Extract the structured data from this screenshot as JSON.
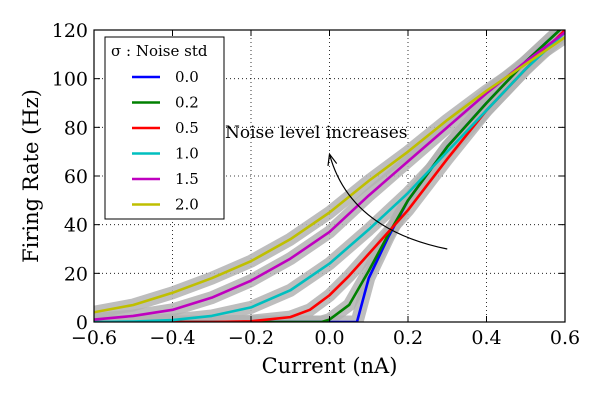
{
  "chart_data": {
    "type": "line",
    "title": "",
    "xlabel": "Current (nA)",
    "ylabel": "Firing Rate (Hz)",
    "xlim": [
      -0.6,
      0.6
    ],
    "ylim": [
      0,
      120
    ],
    "xticks": [
      -0.6,
      -0.4,
      -0.2,
      0.0,
      0.2,
      0.4,
      0.6
    ],
    "yticks": [
      0,
      20,
      40,
      60,
      80,
      100,
      120
    ],
    "xtick_labels": [
      "−0.6",
      "−0.4",
      "−0.2",
      "0.0",
      "0.2",
      "0.4",
      "0.6"
    ],
    "ytick_labels": [
      "0",
      "20",
      "40",
      "60",
      "80",
      "100",
      "120"
    ],
    "grid": true,
    "grid_style": "dotted",
    "legend_position": "top-left",
    "legend_title": "σ : Noise std",
    "shaded_band": "std across trials (gray)",
    "series": [
      {
        "name": "0.0",
        "color": "#0000ff",
        "x": [
          -0.6,
          0.0,
          0.07,
          0.1,
          0.15,
          0.2,
          0.3,
          0.4,
          0.5,
          0.6
        ],
        "y": [
          0,
          0,
          0,
          18,
          35,
          50,
          72,
          90,
          107,
          122
        ]
      },
      {
        "name": "0.2",
        "color": "#008000",
        "x": [
          -0.6,
          -0.02,
          0.0,
          0.05,
          0.1,
          0.15,
          0.2,
          0.3,
          0.4,
          0.5,
          0.6
        ],
        "y": [
          0,
          0,
          1,
          7,
          21,
          36,
          50,
          72,
          90,
          107,
          122
        ]
      },
      {
        "name": "0.5",
        "color": "#ff0000",
        "x": [
          -0.6,
          -0.3,
          -0.2,
          -0.1,
          -0.05,
          0.0,
          0.05,
          0.1,
          0.15,
          0.2,
          0.3,
          0.4,
          0.5,
          0.6
        ],
        "y": [
          0,
          0,
          0.3,
          2,
          5,
          11,
          19,
          28,
          37,
          46,
          67,
          87,
          104,
          120
        ]
      },
      {
        "name": "1.0",
        "color": "#00bfbf",
        "x": [
          -0.6,
          -0.5,
          -0.4,
          -0.3,
          -0.2,
          -0.1,
          0.0,
          0.1,
          0.2,
          0.3,
          0.4,
          0.5,
          0.6
        ],
        "y": [
          0,
          0.2,
          0.8,
          2.5,
          6,
          13,
          24,
          38,
          53,
          70,
          87,
          104,
          119
        ]
      },
      {
        "name": "1.5",
        "color": "#bf00bf",
        "x": [
          -0.6,
          -0.5,
          -0.4,
          -0.3,
          -0.2,
          -0.1,
          0.0,
          0.1,
          0.2,
          0.3,
          0.4,
          0.5,
          0.6
        ],
        "y": [
          1,
          2.5,
          5,
          10,
          17,
          26,
          37,
          52,
          66,
          80,
          94,
          107,
          119
        ]
      },
      {
        "name": "2.0",
        "color": "#bfbf00",
        "x": [
          -0.6,
          -0.5,
          -0.4,
          -0.3,
          -0.2,
          -0.1,
          0.0,
          0.1,
          0.2,
          0.3,
          0.4,
          0.5,
          0.6
        ],
        "y": [
          4,
          7,
          12,
          18,
          25,
          34,
          45,
          58,
          70,
          83,
          95,
          106,
          117
        ]
      }
    ],
    "annotations": [
      {
        "text": "Noise level increases",
        "arrow_from": [
          0.3,
          30
        ],
        "arrow_to": [
          0.0,
          69
        ]
      }
    ]
  }
}
